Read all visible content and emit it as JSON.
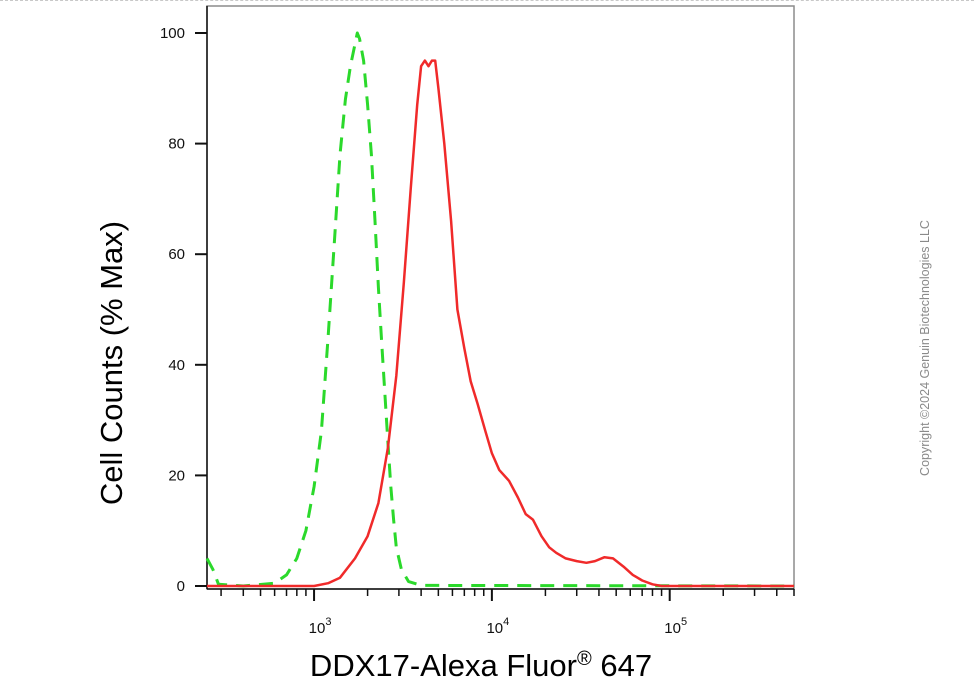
{
  "chart_data": {
    "type": "line",
    "xlabel_main": "DDX17-Alexa Fluor",
    "xlabel_symbol": "®",
    "xlabel_tail": " 647",
    "ylabel": "Cell Counts (% Max)",
    "xscale": "log",
    "xlim": [
      250,
      500000
    ],
    "ylim": [
      0,
      100
    ],
    "yticks": [
      "0",
      "20",
      "40",
      "60",
      "80",
      "100"
    ],
    "xticks": [
      {
        "value": 1000,
        "base": "10",
        "exp": "3"
      },
      {
        "value": 10000,
        "base": "10",
        "exp": "4"
      },
      {
        "value": 100000,
        "base": "10",
        "exp": "5"
      }
    ],
    "grid": false,
    "series": [
      {
        "style": "dashed",
        "color": "#2bd92b",
        "points": [
          [
            250,
            5
          ],
          [
            270,
            3
          ],
          [
            290,
            0.3
          ],
          [
            400,
            0
          ],
          [
            600,
            0.5
          ],
          [
            700,
            2
          ],
          [
            800,
            5
          ],
          [
            900,
            10
          ],
          [
            1000,
            18
          ],
          [
            1100,
            28
          ],
          [
            1200,
            45
          ],
          [
            1300,
            62
          ],
          [
            1400,
            78
          ],
          [
            1500,
            88
          ],
          [
            1600,
            94
          ],
          [
            1700,
            98
          ],
          [
            1750,
            100
          ],
          [
            1800,
            99
          ],
          [
            1900,
            95
          ],
          [
            2000,
            87
          ],
          [
            2100,
            78
          ],
          [
            2200,
            66
          ],
          [
            2300,
            54
          ],
          [
            2400,
            44
          ],
          [
            2500,
            35
          ],
          [
            2600,
            26
          ],
          [
            2700,
            18
          ],
          [
            2800,
            12
          ],
          [
            2900,
            7
          ],
          [
            3100,
            3
          ],
          [
            3400,
            0.8
          ],
          [
            4000,
            0.1
          ],
          [
            500000,
            0
          ]
        ]
      },
      {
        "style": "solid",
        "color": "#f02a2a",
        "points": [
          [
            250,
            0
          ],
          [
            1000,
            0
          ],
          [
            1200,
            0.5
          ],
          [
            1400,
            1.5
          ],
          [
            1700,
            5
          ],
          [
            2000,
            9
          ],
          [
            2300,
            15
          ],
          [
            2600,
            25
          ],
          [
            2900,
            38
          ],
          [
            3200,
            55
          ],
          [
            3500,
            72
          ],
          [
            3800,
            87
          ],
          [
            4000,
            94
          ],
          [
            4200,
            95
          ],
          [
            4400,
            94
          ],
          [
            4600,
            95
          ],
          [
            4800,
            95
          ],
          [
            5000,
            90
          ],
          [
            5400,
            80
          ],
          [
            5900,
            66
          ],
          [
            6400,
            50
          ],
          [
            7000,
            43
          ],
          [
            7600,
            37
          ],
          [
            8300,
            33
          ],
          [
            9200,
            28
          ],
          [
            10000,
            24
          ],
          [
            11000,
            21
          ],
          [
            12500,
            19
          ],
          [
            14000,
            16
          ],
          [
            15500,
            13
          ],
          [
            17000,
            12
          ],
          [
            19000,
            9
          ],
          [
            21000,
            7
          ],
          [
            23000,
            6
          ],
          [
            26000,
            5
          ],
          [
            30000,
            4.5
          ],
          [
            34000,
            4.2
          ],
          [
            38000,
            4.5
          ],
          [
            43000,
            5.2
          ],
          [
            48000,
            5
          ],
          [
            55000,
            3.5
          ],
          [
            62000,
            2
          ],
          [
            70000,
            1
          ],
          [
            80000,
            0.3
          ],
          [
            90000,
            0
          ],
          [
            500000,
            0
          ]
        ]
      }
    ]
  },
  "watermark": "Copyright ©2024 Genuin Biotechnologies LLC"
}
